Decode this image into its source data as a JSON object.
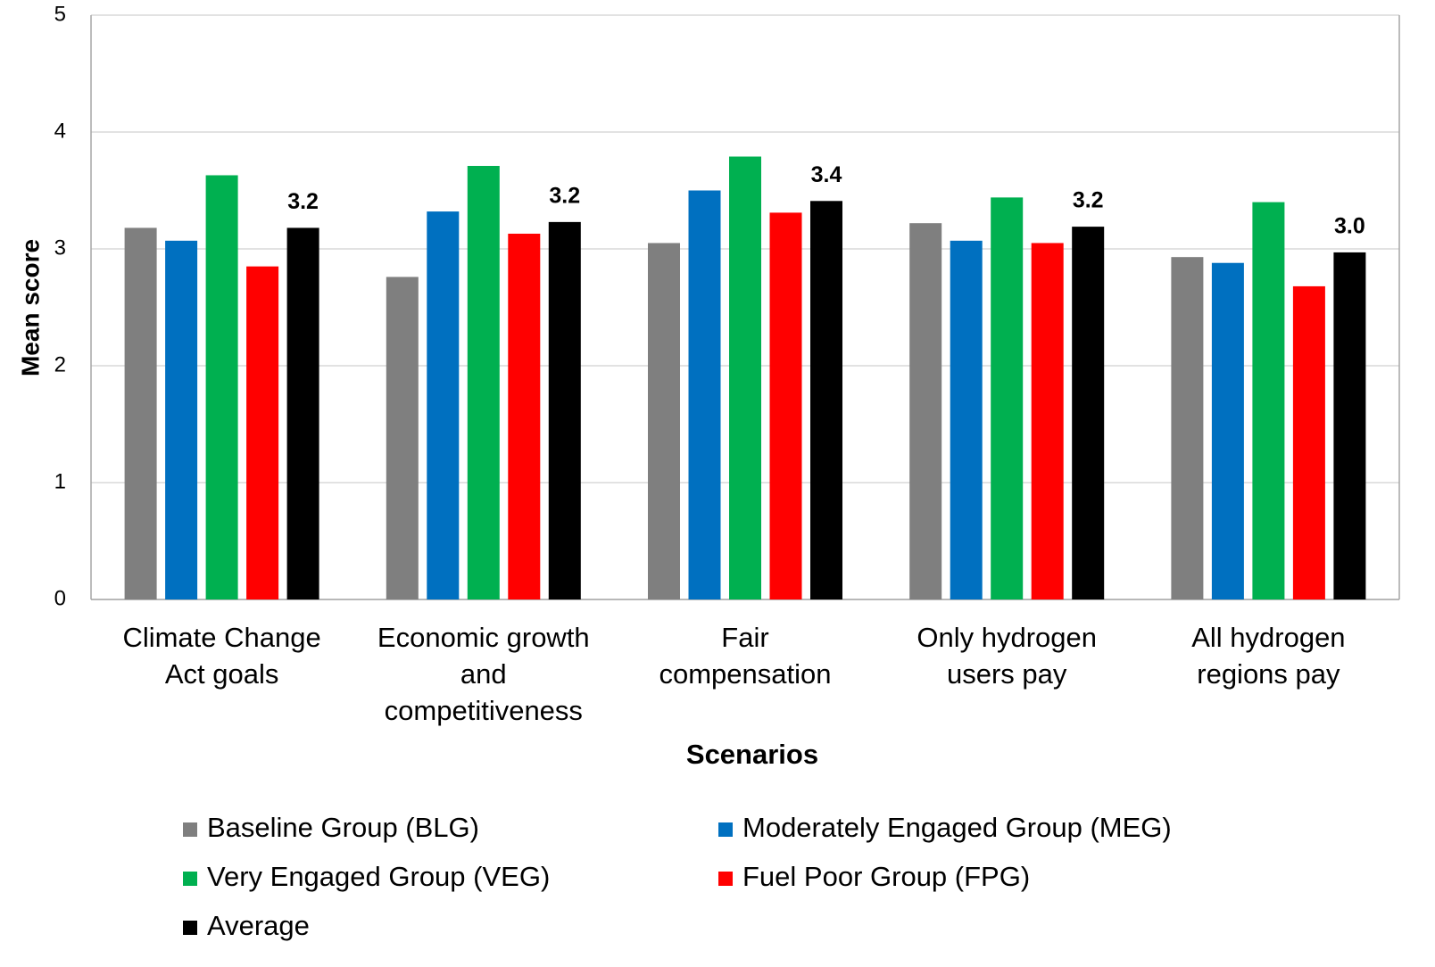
{
  "chart_data": {
    "type": "bar",
    "x_label": "Scenarios",
    "y_label": "Mean score",
    "categories": [
      [
        "Climate Change",
        "Act goals"
      ],
      [
        "Economic growth",
        "and",
        "competitiveness"
      ],
      [
        "Fair",
        "compensation"
      ],
      [
        "Only hydrogen",
        "users pay"
      ],
      [
        "All hydrogen",
        "regions pay"
      ]
    ],
    "series": [
      {
        "name": "Baseline Group (BLG)",
        "color": "#7f7f7f",
        "values": [
          3.18,
          2.76,
          3.05,
          3.22,
          2.93
        ]
      },
      {
        "name": "Moderately Engaged Group (MEG)",
        "color": "#0070c0",
        "values": [
          3.07,
          3.32,
          3.5,
          3.07,
          2.88
        ]
      },
      {
        "name": "Very Engaged Group (VEG)",
        "color": "#00b050",
        "values": [
          3.63,
          3.71,
          3.79,
          3.44,
          3.4
        ]
      },
      {
        "name": "Fuel Poor Group (FPG)",
        "color": "#ff0000",
        "values": [
          2.85,
          3.13,
          3.31,
          3.05,
          2.68
        ]
      },
      {
        "name": "Average",
        "color": "#000000",
        "values": [
          3.18,
          3.23,
          3.41,
          3.19,
          2.97
        ],
        "value_labels": [
          "3.2",
          "3.2",
          "3.4",
          "3.2",
          "3.0"
        ]
      }
    ],
    "ylim": [
      0,
      5
    ],
    "yticks": [
      0,
      1,
      2,
      3,
      4,
      5
    ],
    "grid": true,
    "legend": "bottom"
  }
}
